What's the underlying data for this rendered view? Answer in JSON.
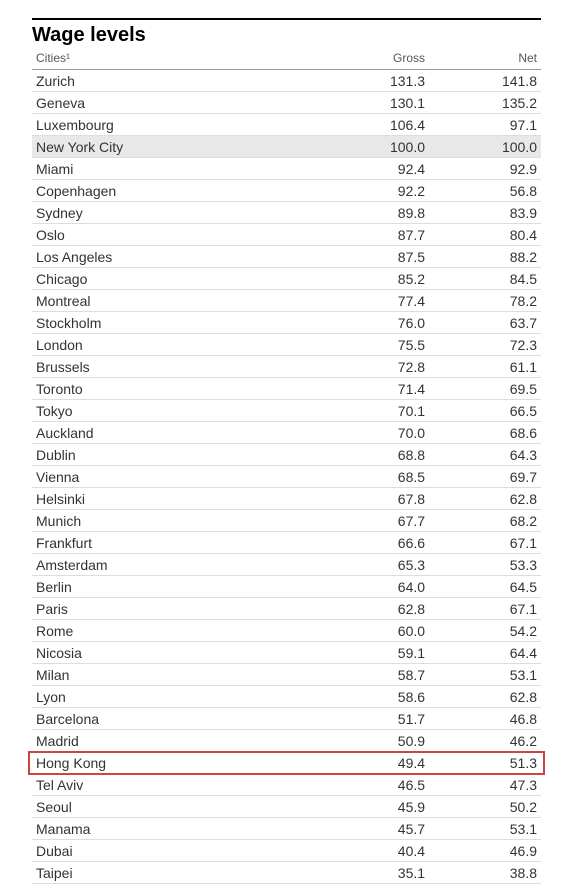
{
  "title": "Wage levels",
  "columns": [
    "Cities¹",
    "Gross",
    "Net"
  ],
  "styling": {
    "title_fontsize": 20,
    "title_fontweight": "bold",
    "header_fontsize": 12,
    "cell_fontsize": 14,
    "title_border_top_color": "#000000",
    "row_border_color": "#dddddd",
    "header_border_color": "#999999",
    "text_color": "#333333",
    "header_text_color": "#555555",
    "shaded_row_bg": "#e8e8e8",
    "highlight_box_color": "#cc4444",
    "background_color": "#ffffff",
    "col_align": [
      "left",
      "right",
      "right"
    ],
    "col_widths_pct": [
      56,
      22,
      22
    ]
  },
  "shaded_row_index": 3,
  "highlight_box_index": 31,
  "rows": [
    {
      "city": "Zurich",
      "gross": "131.3",
      "net": "141.8"
    },
    {
      "city": "Geneva",
      "gross": "130.1",
      "net": "135.2"
    },
    {
      "city": "Luxembourg",
      "gross": "106.4",
      "net": "97.1"
    },
    {
      "city": "New York City",
      "gross": "100.0",
      "net": "100.0"
    },
    {
      "city": "Miami",
      "gross": "92.4",
      "net": "92.9"
    },
    {
      "city": "Copenhagen",
      "gross": "92.2",
      "net": "56.8"
    },
    {
      "city": "Sydney",
      "gross": "89.8",
      "net": "83.9"
    },
    {
      "city": "Oslo",
      "gross": "87.7",
      "net": "80.4"
    },
    {
      "city": "Los Angeles",
      "gross": "87.5",
      "net": "88.2"
    },
    {
      "city": "Chicago",
      "gross": "85.2",
      "net": "84.5"
    },
    {
      "city": "Montreal",
      "gross": "77.4",
      "net": "78.2"
    },
    {
      "city": "Stockholm",
      "gross": "76.0",
      "net": "63.7"
    },
    {
      "city": "London",
      "gross": "75.5",
      "net": "72.3"
    },
    {
      "city": "Brussels",
      "gross": "72.8",
      "net": "61.1"
    },
    {
      "city": "Toronto",
      "gross": "71.4",
      "net": "69.5"
    },
    {
      "city": "Tokyo",
      "gross": "70.1",
      "net": "66.5"
    },
    {
      "city": "Auckland",
      "gross": "70.0",
      "net": "68.6"
    },
    {
      "city": "Dublin",
      "gross": "68.8",
      "net": "64.3"
    },
    {
      "city": "Vienna",
      "gross": "68.5",
      "net": "69.7"
    },
    {
      "city": "Helsinki",
      "gross": "67.8",
      "net": "62.8"
    },
    {
      "city": "Munich",
      "gross": "67.7",
      "net": "68.2"
    },
    {
      "city": "Frankfurt",
      "gross": "66.6",
      "net": "67.1"
    },
    {
      "city": "Amsterdam",
      "gross": "65.3",
      "net": "53.3"
    },
    {
      "city": "Berlin",
      "gross": "64.0",
      "net": "64.5"
    },
    {
      "city": "Paris",
      "gross": "62.8",
      "net": "67.1"
    },
    {
      "city": "Rome",
      "gross": "60.0",
      "net": "54.2"
    },
    {
      "city": "Nicosia",
      "gross": "59.1",
      "net": "64.4"
    },
    {
      "city": "Milan",
      "gross": "58.7",
      "net": "53.1"
    },
    {
      "city": "Lyon",
      "gross": "58.6",
      "net": "62.8"
    },
    {
      "city": "Barcelona",
      "gross": "51.7",
      "net": "46.8"
    },
    {
      "city": "Madrid",
      "gross": "50.9",
      "net": "46.2"
    },
    {
      "city": "Hong Kong",
      "gross": "49.4",
      "net": "51.3"
    },
    {
      "city": "Tel Aviv",
      "gross": "46.5",
      "net": "47.3"
    },
    {
      "city": "Seoul",
      "gross": "45.9",
      "net": "50.2"
    },
    {
      "city": "Manama",
      "gross": "45.7",
      "net": "53.1"
    },
    {
      "city": "Dubai",
      "gross": "40.4",
      "net": "46.9"
    },
    {
      "city": "Taipei",
      "gross": "35.1",
      "net": "38.8"
    }
  ]
}
